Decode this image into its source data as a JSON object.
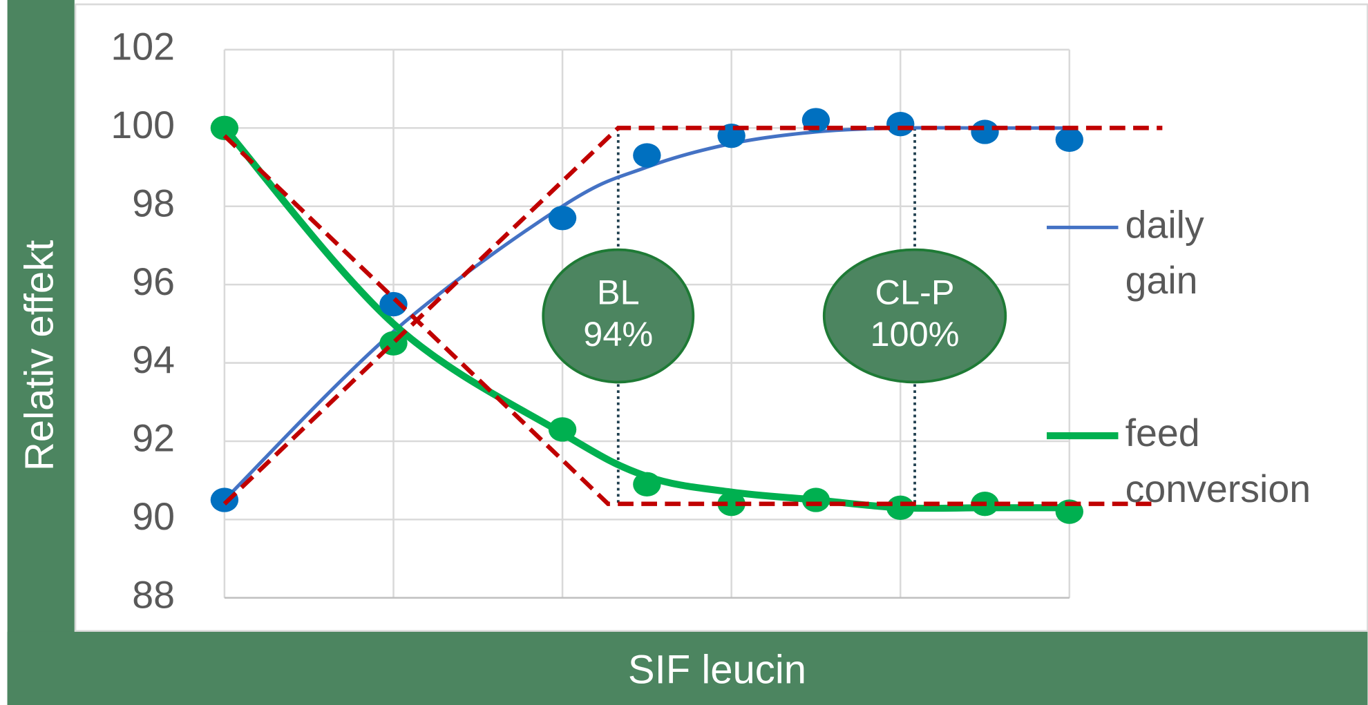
{
  "chart_data": {
    "type": "scatter_fit",
    "x_label": "SIF leucin",
    "y_label": "Relativ effekt",
    "xlim": [
      0,
      10
    ],
    "xticks": [
      0,
      2,
      4,
      6,
      8,
      10
    ],
    "ylim": [
      88,
      102
    ],
    "yticks": [
      88,
      90,
      92,
      94,
      96,
      98,
      100,
      102
    ],
    "grid": true,
    "legend": "right",
    "x": [
      0,
      2,
      4,
      5,
      6,
      7,
      8,
      9,
      10
    ],
    "series": [
      {
        "name": "daily gain",
        "color": "#4472c4",
        "marker_color": "#0070c0",
        "values": [
          90.5,
          95.5,
          97.7,
          99.3,
          99.8,
          100.2,
          100.1,
          99.9,
          99.7
        ],
        "fit": [
          90.5,
          94.8,
          98.0,
          99.0,
          99.6,
          99.9,
          100,
          100,
          100
        ]
      },
      {
        "name": "feed conversion",
        "color": "#00b050",
        "marker_color": "#00b050",
        "values": [
          100,
          94.5,
          92.3,
          90.9,
          90.4,
          90.5,
          90.3,
          90.4,
          90.2
        ],
        "fit": [
          100,
          95.0,
          92.2,
          91.1,
          90.7,
          90.5,
          90.3,
          90.3,
          90.3
        ]
      }
    ],
    "broken_lines": [
      {
        "color": "#c00000",
        "x": [
          0,
          4.66,
          11.1
        ],
        "y": [
          90.4,
          100,
          100
        ]
      },
      {
        "color": "#c00000",
        "x": [
          0,
          4.54,
          10.97
        ],
        "y": [
          99.8,
          90.4,
          90.4
        ]
      }
    ],
    "reference_lines": [
      {
        "x": 4.66,
        "ymin": 90.4,
        "ymax": 100,
        "label": [
          "BL",
          "94%"
        ]
      },
      {
        "x": 8.17,
        "ymin": 90.4,
        "ymax": 100,
        "label": [
          "CL-P",
          "100%"
        ]
      }
    ]
  }
}
